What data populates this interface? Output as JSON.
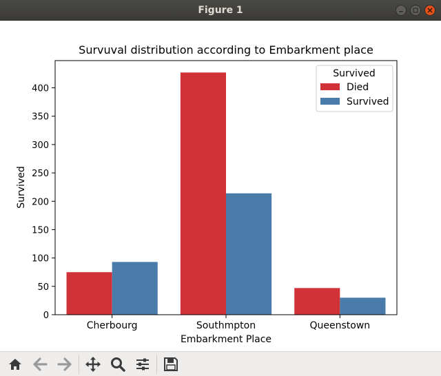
{
  "window": {
    "title": "Figure 1"
  },
  "chart_data": {
    "type": "bar",
    "title": "Survuval distribution according to Embarkment place",
    "xlabel": "Embarkment Place",
    "ylabel": "Survived",
    "categories": [
      "Cherbourg",
      "Southmpton",
      "Queenstown"
    ],
    "series": [
      {
        "name": "Died",
        "values": [
          75,
          427,
          47
        ],
        "color": "#d03237"
      },
      {
        "name": "Survived",
        "values": [
          93,
          214,
          30
        ],
        "color": "#4a7cab"
      }
    ],
    "ylim": [
      0,
      448
    ],
    "yticks": [
      0,
      50,
      100,
      150,
      200,
      250,
      300,
      350,
      400
    ],
    "legend": {
      "title": "Survived",
      "placement": "top-right"
    },
    "grid": false
  },
  "toolbar": {
    "items": [
      "home-icon",
      "back-icon",
      "forward-icon",
      "pan-icon",
      "zoom-icon",
      "configure-icon",
      "save-icon"
    ]
  }
}
